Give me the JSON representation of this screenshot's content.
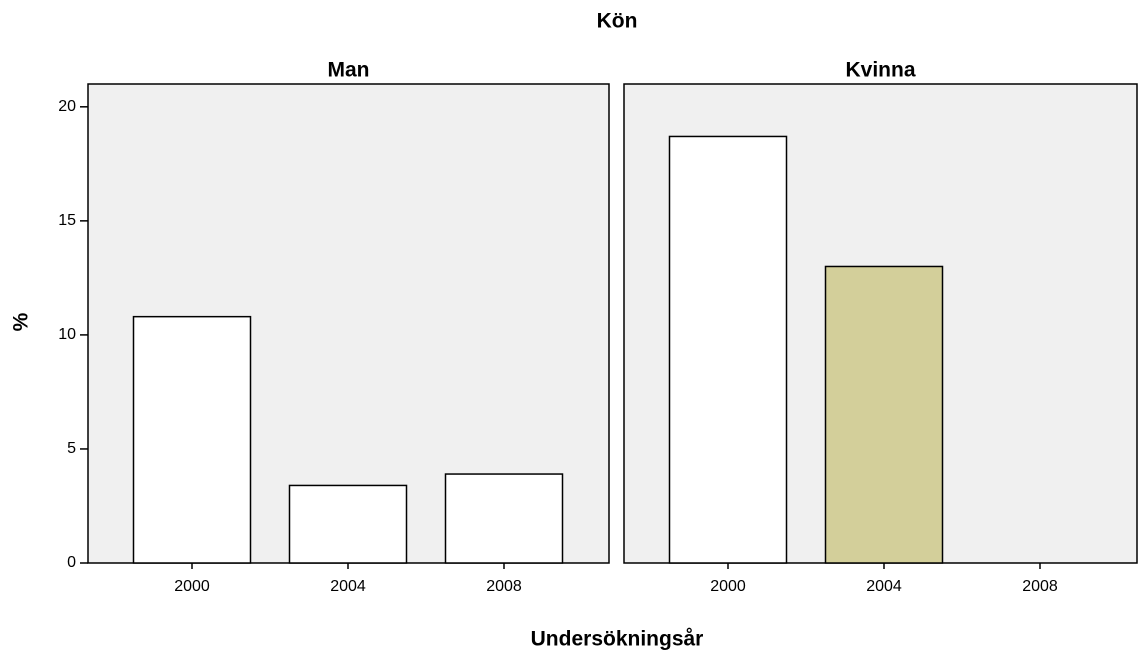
{
  "chart_data": {
    "type": "bar",
    "title": "Kön",
    "y_label": "%",
    "x_label": "Undersökningsår",
    "categories": [
      "2000",
      "2004",
      "2008"
    ],
    "ylim": [
      0,
      21
    ],
    "yticks": [
      0,
      5,
      10,
      15,
      20
    ],
    "panel_background": "#f0f0f0",
    "panels": [
      {
        "title": "Man",
        "values": [
          10.8,
          3.4,
          3.9
        ],
        "colors": [
          "#ffffff",
          "#ffffff",
          "#ffffff"
        ]
      },
      {
        "title": "Kvinna",
        "values": [
          18.7,
          13.0,
          null
        ],
        "colors": [
          "#ffffff",
          "#d3cf9a",
          "#ffffff"
        ]
      }
    ]
  }
}
